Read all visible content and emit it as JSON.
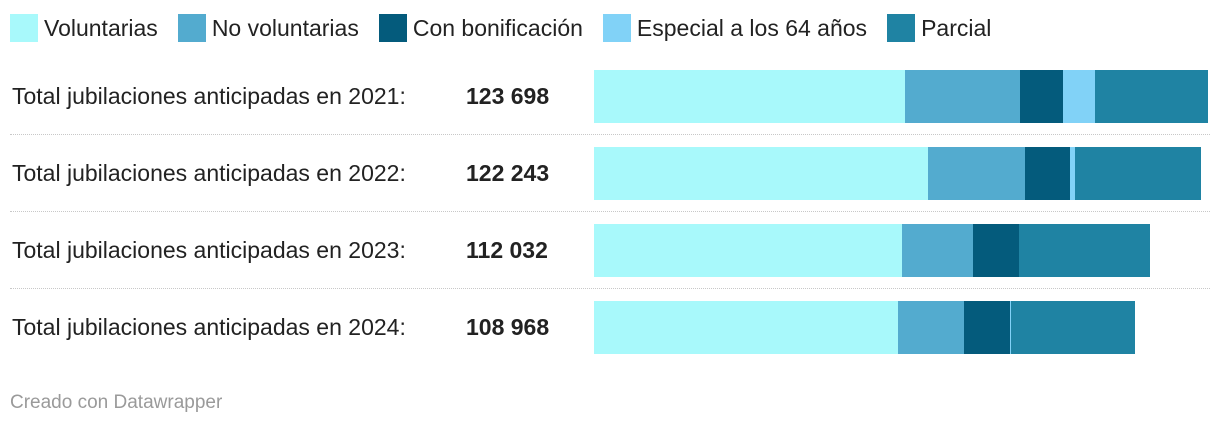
{
  "chart_data": {
    "type": "bar",
    "orientation": "horizontal",
    "stacked": true,
    "legend_position": "top",
    "series": [
      {
        "name": "Voluntarias",
        "color": "#a8f9fb"
      },
      {
        "name": "No voluntarias",
        "color": "#53abcf"
      },
      {
        "name": "Con bonificación",
        "color": "#045b7c"
      },
      {
        "name": "Especial a los 64 años",
        "color": "#81d2f7"
      },
      {
        "name": "Parcial",
        "color": "#1f83a3"
      }
    ],
    "rows": [
      {
        "label": "Total jubilaciones anticipadas en 2021:",
        "total_text": "123 698",
        "total": 123698,
        "values": [
          62700,
          23100,
          8700,
          6400,
          22798
        ]
      },
      {
        "label": "Total jubilaciones anticipadas en 2022:",
        "total_text": "122 243",
        "total": 122243,
        "values": [
          67200,
          19700,
          8900,
          1100,
          25343
        ]
      },
      {
        "label": "Total jubilaciones anticipadas en 2023:",
        "total_text": "112 032",
        "total": 112032,
        "values": [
          62000,
          14400,
          9300,
          0,
          26332
        ]
      },
      {
        "label": "Total jubilaciones anticipadas en 2024:",
        "total_text": "108 968",
        "total": 108968,
        "values": [
          61200,
          13300,
          9300,
          200,
          24968
        ]
      }
    ],
    "max_total": 123698
  },
  "footer": {
    "credit": "Creado con Datawrapper"
  }
}
